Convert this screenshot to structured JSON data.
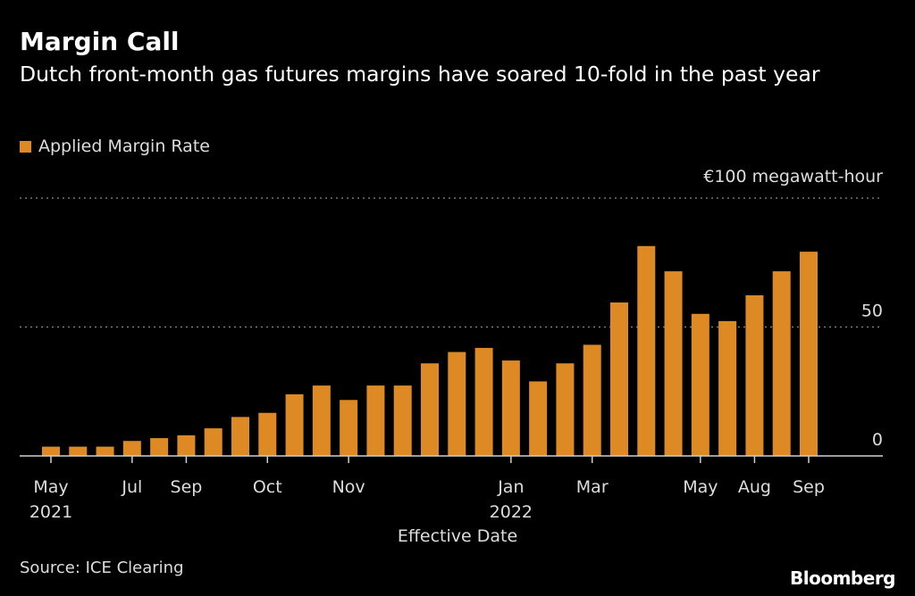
{
  "header": {
    "title": "Margin Call",
    "subtitle": "Dutch front-month gas futures margins have soared 10-fold in the past year"
  },
  "footer": {
    "source": "Source: ICE Clearing",
    "logo": "Bloomberg"
  },
  "colors": {
    "bar": "#dd8a24",
    "background": "#000000",
    "grid": "#8a8a8a"
  },
  "chart_data": {
    "type": "bar",
    "title": "Margin Call",
    "legend": [
      "Applied Margin Rate"
    ],
    "legend_position": "top-left",
    "unit_label": "€100 megawatt-hour",
    "xlabel": "Effective Date",
    "ylabel": "",
    "ylim": [
      0,
      100
    ],
    "yticks": [
      {
        "value": 0,
        "label": "0"
      },
      {
        "value": 50,
        "label": "50"
      },
      {
        "value": 100,
        "label": "€100 megawatt-hour"
      }
    ],
    "grid": true,
    "values": [
      3.6,
      3.6,
      3.6,
      5.8,
      6.9,
      8.0,
      10.7,
      15.1,
      16.7,
      23.9,
      27.3,
      21.7,
      27.3,
      27.3,
      35.9,
      40.3,
      41.9,
      37.0,
      28.9,
      35.9,
      43.1,
      59.5,
      81.4,
      71.6,
      55.1,
      52.3,
      62.3,
      71.6,
      79.2
    ],
    "xticks": [
      {
        "index": 0,
        "label": "May",
        "year": "2021"
      },
      {
        "index": 3,
        "label": "Jul"
      },
      {
        "index": 5,
        "label": "Sep"
      },
      {
        "index": 8,
        "label": "Oct"
      },
      {
        "index": 11,
        "label": "Nov"
      },
      {
        "index": 17,
        "label": "Jan",
        "year": "2022"
      },
      {
        "index": 20,
        "label": "Mar"
      },
      {
        "index": 24,
        "label": "May"
      },
      {
        "index": 26,
        "label": "Aug"
      },
      {
        "index": 28,
        "label": "Sep"
      }
    ]
  }
}
